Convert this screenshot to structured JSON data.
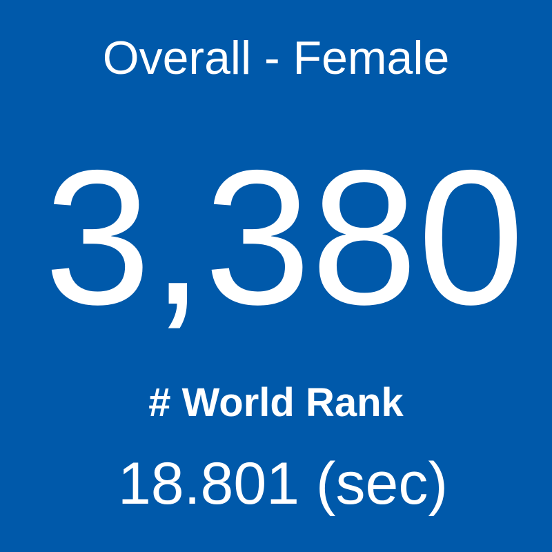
{
  "tile": {
    "category": "Overall - Female",
    "value": "3,380",
    "label": "# World Rank",
    "time": "18.801 (sec)"
  }
}
